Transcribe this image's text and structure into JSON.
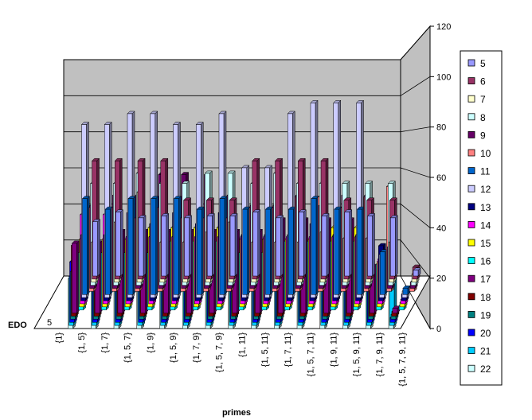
{
  "chart_data": {
    "type": "bar",
    "style": "3d-clustered-column",
    "title": "",
    "xlabel": "primes",
    "zlabel": "EDO",
    "zlabel_tick": "5",
    "ylim": [
      0,
      120
    ],
    "yticks": [
      0,
      20,
      40,
      60,
      80,
      100,
      120
    ],
    "grid": true,
    "legend_position": "right",
    "categories": [
      "{1}",
      "{1, 5}",
      "{1, 7}",
      "{1, 5, 7}",
      "{1, 9}",
      "{1, 5, 9}",
      "{1, 7, 9}",
      "{1, 5, 7, 9}",
      "{1, 11}",
      "{1, 5, 11}",
      "{1, 7, 11}",
      "{1, 5, 7, 11}",
      "{1, 9, 11}",
      "{1, 5, 9, 11}",
      "{1, 7, 9, 11}",
      "{1, 5, 7, 9, 11}"
    ],
    "series": [
      {
        "name": "5",
        "color": "#9999ff",
        "values": [
          0,
          28,
          33,
          30,
          31,
          30,
          31,
          31,
          33,
          30,
          33,
          31,
          33,
          31,
          30,
          3
        ]
      },
      {
        "name": "6",
        "color": "#993366",
        "values": [
          0,
          60,
          60,
          60,
          60,
          40,
          40,
          40,
          60,
          60,
          60,
          60,
          40,
          40,
          40,
          6
        ]
      },
      {
        "name": "7",
        "color": "#ffffcc",
        "values": [
          0,
          20,
          30,
          45,
          20,
          20,
          25,
          30,
          20,
          20,
          20,
          25,
          22,
          22,
          20,
          4
        ]
      },
      {
        "name": "8",
        "color": "#ccffff",
        "values": [
          0,
          50,
          50,
          55,
          50,
          50,
          55,
          55,
          50,
          55,
          50,
          50,
          50,
          50,
          50,
          2
        ]
      },
      {
        "name": "9",
        "color": "#660066",
        "values": [
          0,
          40,
          45,
          45,
          55,
          55,
          55,
          45,
          40,
          40,
          45,
          40,
          45,
          45,
          20,
          3
        ]
      },
      {
        "name": "10",
        "color": "#ff8080",
        "values": [
          0,
          40,
          40,
          35,
          40,
          35,
          35,
          35,
          40,
          40,
          45,
          45,
          40,
          45,
          50,
          2
        ]
      },
      {
        "name": "11",
        "color": "#0066cc",
        "values": [
          0,
          45,
          40,
          45,
          45,
          45,
          40,
          45,
          40,
          40,
          40,
          45,
          40,
          40,
          20,
          3
        ]
      },
      {
        "name": "12",
        "color": "#ccccff",
        "values": [
          0,
          80,
          80,
          85,
          85,
          80,
          80,
          85,
          60,
          60,
          85,
          90,
          90,
          90,
          20,
          3
        ]
      },
      {
        "name": "13",
        "color": "#000080",
        "values": [
          0,
          30,
          30,
          40,
          35,
          40,
          35,
          40,
          30,
          30,
          30,
          35,
          30,
          30,
          25,
          3
        ]
      },
      {
        "name": "14",
        "color": "#ff00ff",
        "values": [
          0,
          40,
          40,
          30,
          30,
          30,
          30,
          30,
          30,
          30,
          30,
          30,
          30,
          30,
          20,
          2
        ]
      },
      {
        "name": "15",
        "color": "#ffff00",
        "values": [
          0,
          30,
          30,
          30,
          35,
          35,
          35,
          35,
          30,
          30,
          30,
          30,
          35,
          35,
          20,
          2
        ]
      },
      {
        "name": "16",
        "color": "#00ffff",
        "values": [
          0,
          25,
          25,
          25,
          25,
          30,
          30,
          30,
          25,
          25,
          30,
          30,
          30,
          30,
          20,
          2
        ]
      },
      {
        "name": "17",
        "color": "#800080",
        "values": [
          0,
          30,
          30,
          35,
          35,
          35,
          35,
          35,
          35,
          35,
          40,
          40,
          40,
          40,
          20,
          2
        ]
      },
      {
        "name": "18",
        "color": "#800000",
        "values": [
          0,
          30,
          30,
          30,
          30,
          30,
          30,
          30,
          30,
          30,
          30,
          30,
          30,
          30,
          20,
          2
        ]
      },
      {
        "name": "19",
        "color": "#008080",
        "values": [
          0,
          20,
          20,
          20,
          20,
          20,
          20,
          20,
          25,
          25,
          25,
          25,
          25,
          25,
          20,
          2
        ]
      },
      {
        "name": "20",
        "color": "#0000ff",
        "values": [
          0,
          25,
          25,
          25,
          25,
          25,
          25,
          25,
          25,
          25,
          25,
          25,
          25,
          25,
          20,
          2
        ]
      },
      {
        "name": "21",
        "color": "#00ccff",
        "values": [
          0,
          20,
          20,
          20,
          20,
          20,
          20,
          20,
          20,
          20,
          20,
          20,
          20,
          20,
          20,
          20
        ]
      },
      {
        "name": "22",
        "color": "#ccffff",
        "values": [
          0,
          20,
          20,
          20,
          20,
          20,
          20,
          20,
          20,
          20,
          20,
          20,
          20,
          20,
          20,
          20
        ]
      }
    ]
  }
}
